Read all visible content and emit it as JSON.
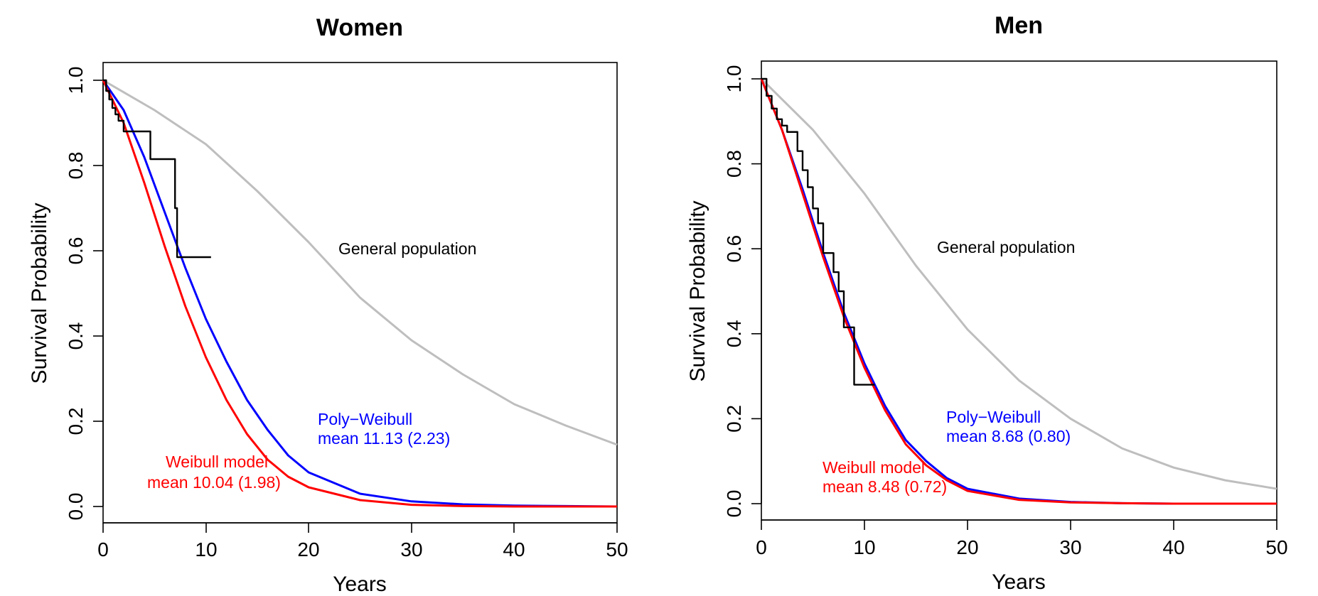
{
  "chart_data": [
    {
      "type": "line",
      "title": "Women",
      "xlabel": "Years",
      "ylabel": "Survival Probability",
      "xlim": [
        0,
        50
      ],
      "ylim": [
        0,
        1
      ],
      "xticks": [
        "0",
        "10",
        "20",
        "30",
        "40",
        "50"
      ],
      "yticks": [
        "0.0",
        "0.2",
        "0.4",
        "0.6",
        "0.8",
        "1.0"
      ],
      "grid": false,
      "legend": "none",
      "annotations": {
        "general": "General population",
        "poly_name": "Poly−Weibull",
        "poly_mean": "mean 11.13 (2.23)",
        "weibull_name": "Weibull model",
        "weibull_mean": "mean 10.04 (1.98)"
      },
      "series": [
        {
          "key": "general",
          "color": "#bebebe",
          "kind": "line",
          "x": [
            0,
            5,
            10,
            15,
            20,
            25,
            30,
            35,
            40,
            45,
            50
          ],
          "y": [
            1.0,
            0.93,
            0.85,
            0.74,
            0.62,
            0.49,
            0.39,
            0.31,
            0.24,
            0.19,
            0.145
          ]
        },
        {
          "key": "poly",
          "color": "#0000ff",
          "kind": "line",
          "x": [
            0,
            2,
            4,
            6,
            8,
            10,
            12,
            14,
            16,
            18,
            20,
            25,
            30,
            35,
            40,
            45,
            50
          ],
          "y": [
            1.0,
            0.93,
            0.82,
            0.69,
            0.56,
            0.44,
            0.34,
            0.25,
            0.18,
            0.12,
            0.08,
            0.03,
            0.012,
            0.005,
            0.002,
            0.001,
            0.0
          ]
        },
        {
          "key": "weibull",
          "color": "#ff0000",
          "kind": "line",
          "x": [
            0,
            2,
            4,
            6,
            8,
            10,
            12,
            14,
            16,
            18,
            20,
            25,
            30,
            35,
            40,
            45,
            50
          ],
          "y": [
            1.0,
            0.9,
            0.76,
            0.61,
            0.47,
            0.35,
            0.25,
            0.17,
            0.11,
            0.07,
            0.045,
            0.015,
            0.004,
            0.001,
            0.0,
            0.0,
            0.0
          ]
        },
        {
          "key": "km",
          "color": "#000000",
          "kind": "step",
          "x": [
            0,
            0.3,
            0.6,
            0.9,
            1.2,
            1.5,
            2.0,
            4.6,
            7.0,
            7.2,
            10.5
          ],
          "y": [
            1.0,
            0.975,
            0.955,
            0.935,
            0.92,
            0.905,
            0.88,
            0.815,
            0.7,
            0.585,
            0.585
          ]
        }
      ]
    },
    {
      "type": "line",
      "title": "Men",
      "xlabel": "Years",
      "ylabel": "Survival Probability",
      "xlim": [
        0,
        50
      ],
      "ylim": [
        0,
        1
      ],
      "xticks": [
        "0",
        "10",
        "20",
        "30",
        "40",
        "50"
      ],
      "yticks": [
        "0.0",
        "0.2",
        "0.4",
        "0.6",
        "0.8",
        "1.0"
      ],
      "grid": false,
      "legend": "none",
      "annotations": {
        "general": "General population",
        "poly_name": "Poly−Weibull",
        "poly_mean": "mean 8.68 (0.80)",
        "weibull_name": "Weibull model",
        "weibull_mean": "mean 8.48 (0.72)"
      },
      "series": [
        {
          "key": "general",
          "color": "#bebebe",
          "kind": "line",
          "x": [
            0,
            5,
            10,
            15,
            20,
            25,
            30,
            35,
            40,
            45,
            50
          ],
          "y": [
            1.0,
            0.88,
            0.73,
            0.56,
            0.41,
            0.29,
            0.2,
            0.13,
            0.085,
            0.055,
            0.035
          ]
        },
        {
          "key": "poly",
          "color": "#0000ff",
          "kind": "line",
          "x": [
            0,
            2,
            4,
            6,
            8,
            10,
            12,
            14,
            16,
            18,
            20,
            25,
            30,
            35,
            40,
            45,
            50
          ],
          "y": [
            1.0,
            0.88,
            0.74,
            0.59,
            0.45,
            0.33,
            0.23,
            0.15,
            0.1,
            0.06,
            0.035,
            0.012,
            0.004,
            0.001,
            0.0,
            0.0,
            0.0
          ]
        },
        {
          "key": "weibull",
          "color": "#ff0000",
          "kind": "line",
          "x": [
            0,
            2,
            4,
            6,
            8,
            10,
            12,
            14,
            16,
            18,
            20,
            25,
            30,
            35,
            40,
            45,
            50
          ],
          "y": [
            1.0,
            0.88,
            0.73,
            0.58,
            0.44,
            0.32,
            0.22,
            0.14,
            0.09,
            0.055,
            0.03,
            0.009,
            0.003,
            0.001,
            0.0,
            0.0,
            0.0
          ]
        },
        {
          "key": "km",
          "color": "#000000",
          "kind": "step",
          "x": [
            0,
            0.5,
            1.0,
            1.5,
            2.0,
            2.5,
            3.5,
            4.0,
            4.5,
            5.0,
            5.5,
            6.0,
            7.0,
            7.5,
            8.0,
            9.0,
            11.0
          ],
          "y": [
            1.0,
            0.96,
            0.93,
            0.905,
            0.89,
            0.875,
            0.83,
            0.785,
            0.745,
            0.695,
            0.66,
            0.59,
            0.545,
            0.5,
            0.415,
            0.28,
            0.28
          ]
        }
      ]
    }
  ]
}
